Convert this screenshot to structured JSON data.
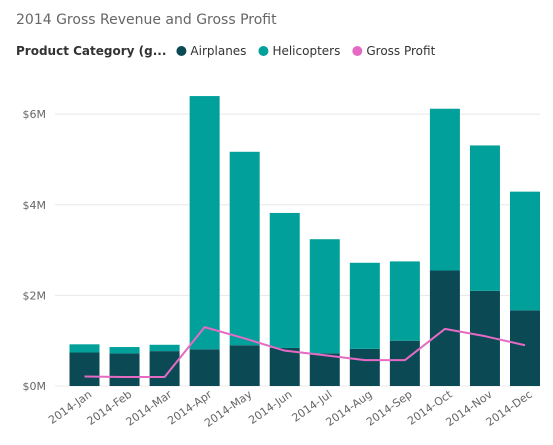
{
  "chart_data": {
    "type": "bar",
    "title": "2014 Gross Revenue and Gross Profit",
    "legend": {
      "title": "Product Category (g...",
      "placement": "top-left"
    },
    "categories": [
      "2014-Jan",
      "2014-Feb",
      "2014-Mar",
      "2014-Apr",
      "2014-May",
      "2014-Jun",
      "2014-Jul",
      "2014-Aug",
      "2014-Sep",
      "2014-Oct",
      "2014-Nov",
      "2014-Dec"
    ],
    "series": [
      {
        "name": "Airplanes",
        "kind": "bar-stacked",
        "color": "#0b4a55",
        "values": [
          0.74,
          0.72,
          0.77,
          0.81,
          0.9,
          0.84,
          0.72,
          0.82,
          1.0,
          2.55,
          2.1,
          1.67
        ]
      },
      {
        "name": "Helicopters",
        "kind": "bar-stacked",
        "color": "#01a09a",
        "values": [
          0.18,
          0.14,
          0.14,
          5.59,
          4.27,
          2.98,
          2.52,
          1.9,
          1.75,
          3.57,
          3.21,
          2.62
        ]
      },
      {
        "name": "Gross Profit",
        "kind": "line",
        "color": "#e66ac3",
        "values": [
          0.21,
          0.2,
          0.2,
          1.3,
          1.05,
          0.78,
          0.68,
          0.57,
          0.57,
          1.26,
          1.1,
          0.9
        ]
      }
    ],
    "yticks": [
      {
        "value": 0,
        "label": "$0M"
      },
      {
        "value": 2,
        "label": "$2M"
      },
      {
        "value": 4,
        "label": "$4M"
      },
      {
        "value": 6,
        "label": "$6M"
      }
    ],
    "ylim": [
      0,
      6.6
    ],
    "grid": true
  }
}
